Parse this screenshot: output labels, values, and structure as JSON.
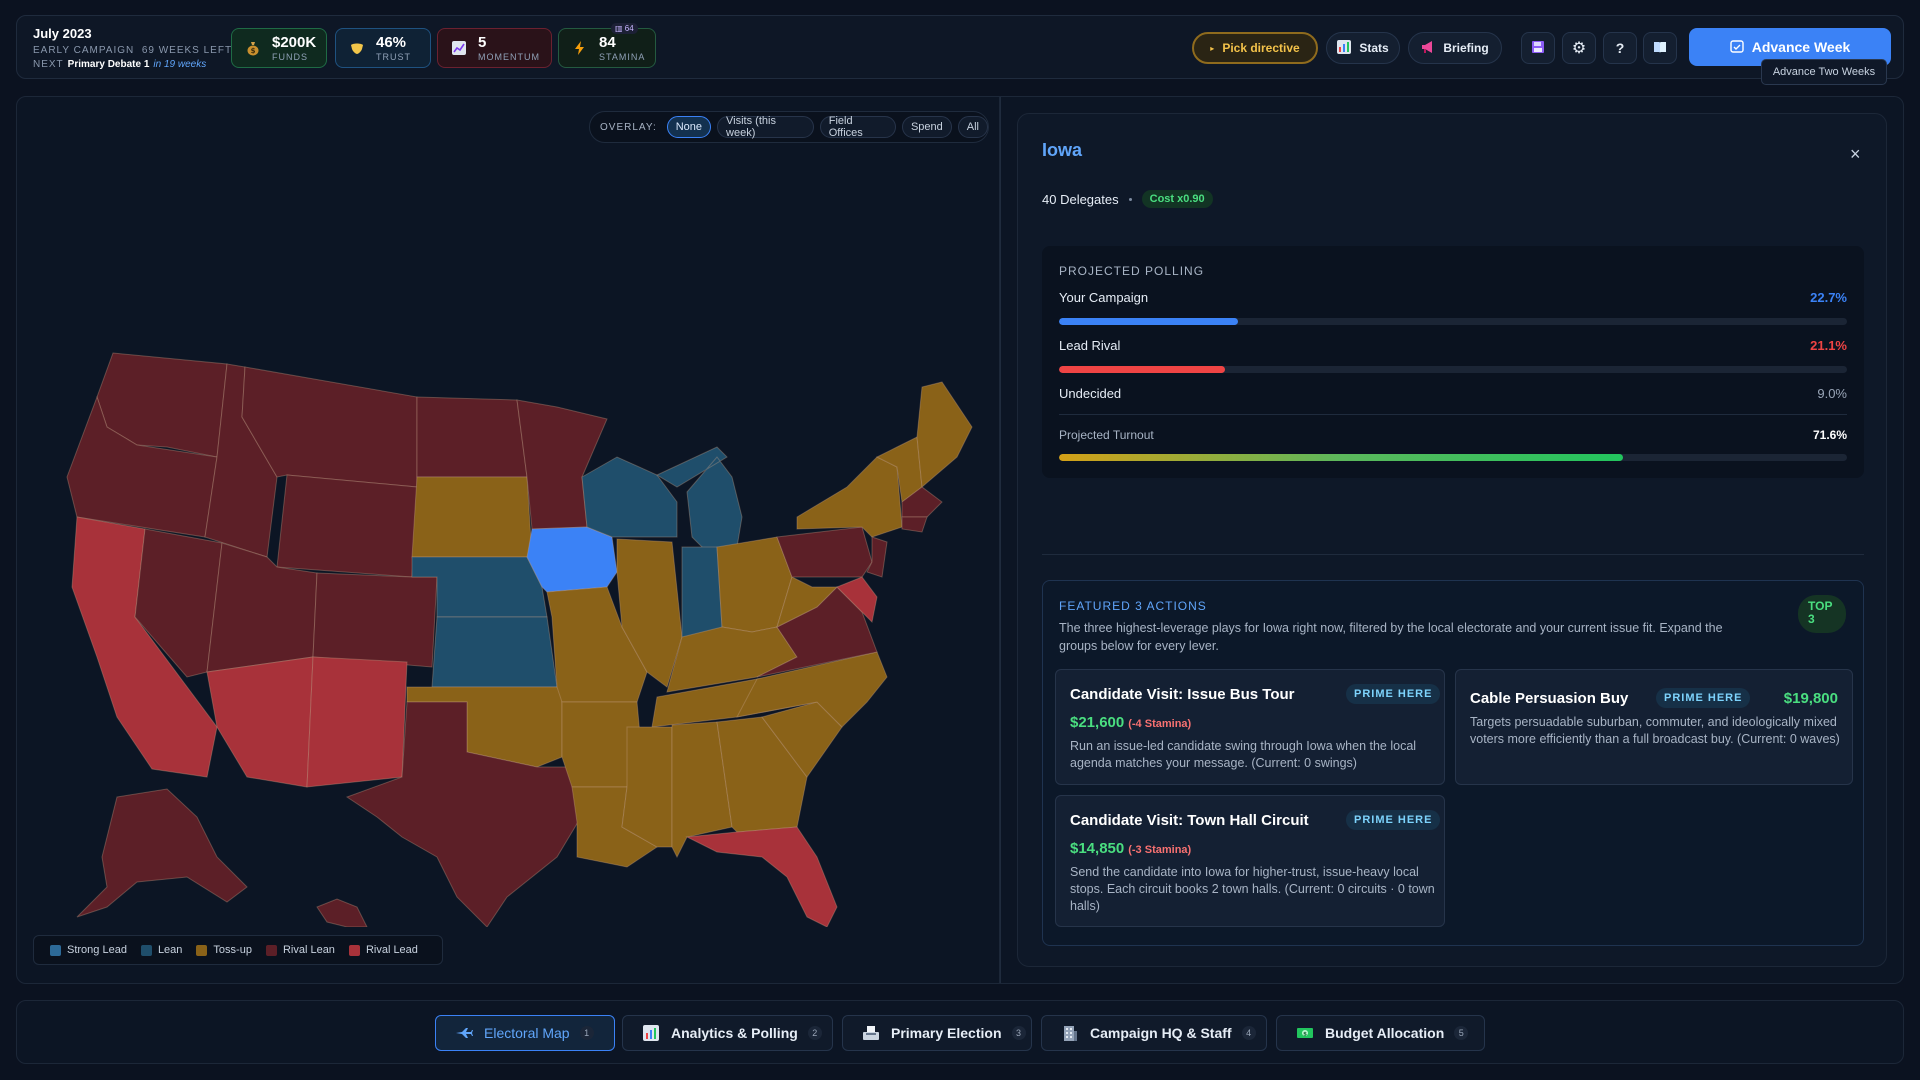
{
  "header": {
    "date": "July 2023",
    "phase": "EARLY CAMPAIGN",
    "weeks_left": "69 WEEKS LEFT",
    "next_label": "NEXT",
    "next_event": "Primary Debate 1",
    "next_in": "in 19 weeks",
    "stats": {
      "funds": {
        "value": "$200K",
        "label": "FUNDS",
        "icon": "money-bag-icon"
      },
      "trust": {
        "value": "46%",
        "label": "TRUST",
        "icon": "shield-icon"
      },
      "momentum": {
        "value": "5",
        "label": "MOMENTUM",
        "icon": "chart-icon"
      },
      "stamina": {
        "value": "84",
        "label": "STAMINA",
        "badge": "64",
        "icon": "lightning-icon"
      }
    },
    "buttons": {
      "directive": "Pick directive",
      "stats": "Stats",
      "briefing": "Briefing",
      "advance": "Advance Week",
      "advance_two": "Advance Two Weeks"
    },
    "help": "?"
  },
  "map": {
    "overlay_label": "OVERLAY:",
    "overlay_options": [
      "None",
      "Visits (this week)",
      "Field Offices",
      "Spend",
      "All"
    ],
    "overlay_selected": "None",
    "legend": [
      {
        "label": "Strong Lead",
        "color": "#2d6a98"
      },
      {
        "label": "Lean",
        "color": "#1f4e6b"
      },
      {
        "label": "Toss-up",
        "color": "#8a6218"
      },
      {
        "label": "Rival Lean",
        "color": "#5c1f27"
      },
      {
        "label": "Rival Lead",
        "color": "#a8323a"
      }
    ],
    "selected_state": "Iowa"
  },
  "detail": {
    "state": "Iowa",
    "close": "×",
    "delegates": "40 Delegates",
    "cost": "Cost x0.90",
    "polling": {
      "title": "PROJECTED POLLING",
      "rows": [
        {
          "name": "Your Campaign",
          "pct": "22.7%",
          "value": 22.7,
          "color": "#3b82f6"
        },
        {
          "name": "Lead Rival",
          "pct": "21.1%",
          "value": 21.1,
          "color": "#ef4444"
        },
        {
          "name": "Undecided",
          "pct": "9.0%",
          "value": 9.0,
          "color": "#9aa6b8"
        }
      ],
      "turnout_label": "Projected Turnout",
      "turnout_pct": "71.6%",
      "turnout_value": 71.6
    },
    "featured": {
      "title": "FEATURED 3 ACTIONS",
      "badge": "TOP 3",
      "description": "The three highest-leverage plays for Iowa right now, filtered by the local electorate and your current issue fit. Expand the groups below for every lever.",
      "cards": [
        {
          "title": "Candidate Visit: Issue Bus Tour",
          "tag": "PRIME HERE",
          "price": "$21,600",
          "stamina": "(-4 Stamina)",
          "desc": "Run an issue-led candidate swing through Iowa when the local agenda matches your message. (Current: 0 swings)"
        },
        {
          "title": "Cable Persuasion Buy",
          "tag": "PRIME HERE",
          "price": "$19,800",
          "stamina": "",
          "desc": "Targets persuadable suburban, commuter, and ideologically mixed voters more efficiently than a full broadcast buy. (Current: 0 waves)"
        },
        {
          "title": "Candidate Visit: Town Hall Circuit",
          "tag": "PRIME HERE",
          "price": "$14,850",
          "stamina": "(-3 Stamina)",
          "desc": "Send the candidate into Iowa for higher-trust, issue-heavy local stops. Each circuit books 2 town halls. (Current: 0 circuits · 0 town halls)"
        }
      ]
    }
  },
  "nav": {
    "tabs": [
      {
        "label": "Electoral Map",
        "num": "1",
        "icon": "plane-icon"
      },
      {
        "label": "Analytics & Polling",
        "num": "2",
        "icon": "bar-chart-icon"
      },
      {
        "label": "Primary Election",
        "num": "3",
        "icon": "ballot-box-icon"
      },
      {
        "label": "Campaign HQ & Staff",
        "num": "4",
        "icon": "office-building-icon"
      },
      {
        "label": "Budget Allocation",
        "num": "5",
        "icon": "dollar-bill-icon"
      }
    ],
    "active": "Electoral Map"
  }
}
